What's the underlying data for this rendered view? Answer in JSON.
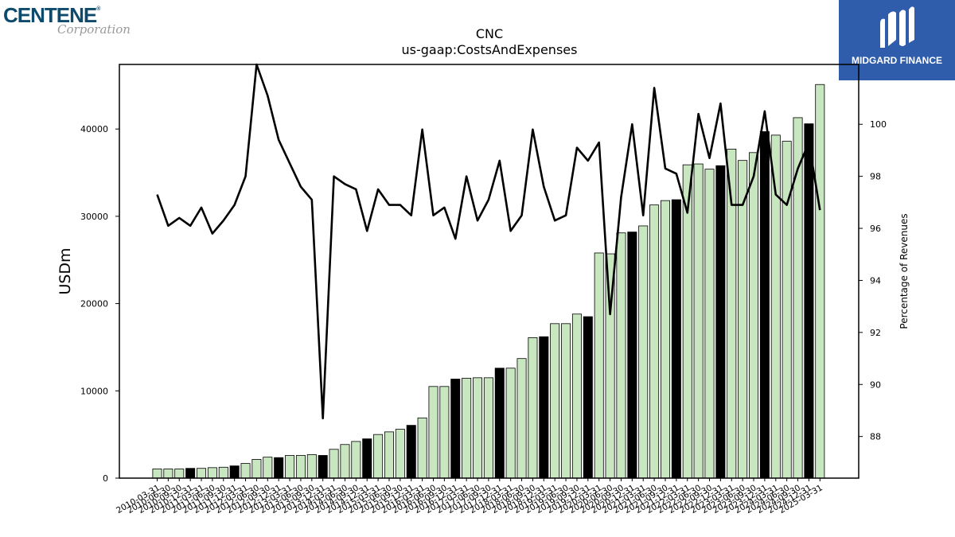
{
  "logos": {
    "left_brand": "CENTENE",
    "left_reg": "®",
    "left_sub": "Corporation",
    "right_label": "MIDGARD FINANCE"
  },
  "chart_data": {
    "type": "bar+line",
    "title": "CNC",
    "subtitle": "us-gaap:CostsAndExpenses",
    "ylabel": "USDm",
    "y2label": "Percentage of Revenues",
    "ylim": [
      0,
      47400
    ],
    "y2lim": [
      86.4,
      102.3
    ],
    "yticks": [
      0,
      10000,
      20000,
      30000,
      40000
    ],
    "y2ticks": [
      88,
      90,
      92,
      94,
      96,
      98,
      100
    ],
    "x": [
      "2010-03-31",
      "2010-06-30",
      "2010-09-30",
      "2010-12-31",
      "2011-03-31",
      "2011-06-30",
      "2011-09-30",
      "2011-12-31",
      "2012-03-31",
      "2012-06-30",
      "2012-09-30",
      "2012-12-31",
      "2013-03-31",
      "2013-06-30",
      "2013-09-30",
      "2013-12-31",
      "2014-03-31",
      "2014-06-30",
      "2014-09-30",
      "2014-12-31",
      "2015-03-31",
      "2015-06-30",
      "2015-09-30",
      "2015-12-31",
      "2016-03-31",
      "2016-06-30",
      "2016-09-30",
      "2016-12-31",
      "2017-03-31",
      "2017-06-30",
      "2017-09-30",
      "2017-12-31",
      "2018-03-31",
      "2018-06-30",
      "2018-09-30",
      "2018-12-31",
      "2019-03-31",
      "2019-06-30",
      "2019-09-30",
      "2019-12-31",
      "2020-03-31",
      "2020-06-30",
      "2020-09-30",
      "2020-12-31",
      "2021-03-31",
      "2021-06-30",
      "2021-09-30",
      "2021-12-31",
      "2022-03-31",
      "2022-06-30",
      "2022-09-30",
      "2022-12-31",
      "2023-03-31",
      "2023-06-30",
      "2023-09-30",
      "2023-12-31",
      "2024-03-31",
      "2024-06-30",
      "2024-09-30",
      "2024-12-31",
      "2025-03-31"
    ],
    "series": [
      {
        "type": "bar",
        "values": [
          1050,
          1050,
          1050,
          1120,
          1120,
          1200,
          1250,
          1400,
          1680,
          2150,
          2400,
          2350,
          2600,
          2600,
          2700,
          2600,
          3300,
          3850,
          4200,
          4500,
          5000,
          5300,
          5600,
          6050,
          6900,
          10500,
          10500,
          11350,
          11450,
          11500,
          11500,
          12600,
          12600,
          13700,
          16100,
          16200,
          17700,
          17700,
          18800,
          18500,
          25800,
          25700,
          28100,
          28200,
          28900,
          31300,
          31800,
          31900,
          35900,
          36000,
          35400,
          35800,
          37700,
          36400,
          37300,
          39700,
          39300,
          38600,
          41300,
          40600,
          45100
        ],
        "highlight_color": "#000000",
        "normal_color": "#c8e6c0"
      },
      {
        "type": "line",
        "color": "#000000",
        "values": [
          97.3,
          96.1,
          96.4,
          96.1,
          96.8,
          95.8,
          96.3,
          96.9,
          98.0,
          102.3,
          101.1,
          99.4,
          98.5,
          97.6,
          97.1,
          88.7,
          98.0,
          97.7,
          97.5,
          95.9,
          97.5,
          96.9,
          96.9,
          96.5,
          99.8,
          96.5,
          96.8,
          95.6,
          98.0,
          96.3,
          97.1,
          98.6,
          95.9,
          96.5,
          99.8,
          97.6,
          96.3,
          96.5,
          99.1,
          98.6,
          99.3,
          92.7,
          97.2,
          100.0,
          96.5,
          101.4,
          98.3,
          98.1,
          96.6,
          100.4,
          98.7,
          100.8,
          96.9,
          96.9,
          98.0,
          100.5,
          97.3,
          96.9,
          98.3,
          99.3,
          96.7
        ]
      }
    ]
  }
}
